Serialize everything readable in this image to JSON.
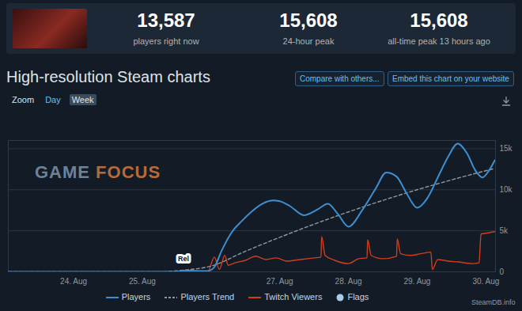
{
  "header": {
    "stats": [
      {
        "value": "13,587",
        "label": "players right now"
      },
      {
        "value": "15,608",
        "label": "24-hour peak"
      },
      {
        "value": "15,608",
        "label": "all-time peak 13 hours ago"
      }
    ]
  },
  "heading": "High-resolution Steam charts",
  "buttons": [
    "Compare with others...",
    "Embed this chart on your website"
  ],
  "zoom": {
    "label": "Zoom",
    "options": [
      "Day",
      "Week"
    ],
    "selected": "Week"
  },
  "watermark": [
    "GAME",
    "FOCUS"
  ],
  "credit": "SteamDB.info",
  "chart_data": {
    "type": "line",
    "xlim": [
      23.05,
      30.14
    ],
    "xticks": [
      {
        "value": 24,
        "label": "24. Aug"
      },
      {
        "value": 25,
        "label": "25. Aug"
      },
      {
        "value": 27,
        "label": "27. Aug"
      },
      {
        "value": 28,
        "label": "28. Aug"
      },
      {
        "value": 29,
        "label": "29. Aug"
      },
      {
        "value": 30,
        "label": "30. Aug"
      }
    ],
    "ylim": [
      0,
      16000
    ],
    "yticks": [
      0,
      {
        "value": 5000,
        "label": "5k"
      },
      {
        "value": 10000,
        "label": "10k"
      },
      {
        "value": 15000,
        "label": "15k"
      }
    ],
    "grid": true,
    "legend": "bottom",
    "series": [
      {
        "name": "Players",
        "color": "#3d8fd1",
        "line_style": "solid",
        "x": [
          23.05,
          25.0,
          25.5,
          25.6,
          25.75,
          25.95,
          26.05,
          26.15,
          26.3,
          26.45,
          26.6,
          26.75,
          26.9,
          27.0,
          27.15,
          27.35,
          27.55,
          27.7,
          27.85,
          28.0,
          28.2,
          28.4,
          28.55,
          28.7,
          28.85,
          29.0,
          29.15,
          29.3,
          29.45,
          29.59,
          29.72,
          29.85,
          29.95,
          30.05,
          30.13
        ],
        "values": [
          0,
          0,
          0,
          150,
          120,
          100,
          600,
          2500,
          4800,
          6200,
          7400,
          8300,
          8700,
          8600,
          8000,
          6900,
          7600,
          8300,
          7000,
          5500,
          7500,
          10200,
          12100,
          11600,
          9500,
          7800,
          9000,
          11500,
          14000,
          15608,
          14500,
          12300,
          11500,
          12400,
          13587
        ]
      },
      {
        "name": "Players Trend",
        "color": "#8f98a0",
        "line_style": "dashed",
        "x": [
          23.05,
          25.2,
          25.6,
          26.0,
          26.5,
          27.0,
          27.5,
          28.0,
          28.5,
          29.0,
          29.5,
          30.13
        ],
        "values": [
          0,
          0,
          200,
          700,
          2500,
          4200,
          5800,
          7300,
          8700,
          10000,
          11200,
          12600
        ]
      },
      {
        "name": "Twitch Viewers",
        "color": "#cf3f1e",
        "line_style": "solid",
        "x": [
          23.05,
          25.95,
          26.05,
          26.12,
          26.2,
          26.25,
          26.35,
          26.5,
          26.65,
          26.8,
          26.95,
          27.1,
          27.3,
          27.5,
          27.6,
          27.61,
          27.66,
          27.8,
          28.0,
          28.15,
          28.27,
          28.28,
          28.33,
          28.5,
          28.7,
          28.71,
          28.76,
          28.9,
          29.05,
          29.2,
          29.22,
          29.3,
          29.45,
          29.6,
          29.8,
          29.9,
          29.93,
          30.0,
          30.13
        ],
        "values": [
          0,
          0,
          1800,
          300,
          2000,
          800,
          1100,
          1400,
          1900,
          1500,
          1700,
          1300,
          1500,
          1700,
          1800,
          4300,
          2000,
          1400,
          1000,
          1600,
          1700,
          3900,
          2000,
          1600,
          1900,
          4000,
          2200,
          2000,
          2200,
          2400,
          300,
          1500,
          1300,
          1200,
          1000,
          1100,
          4600,
          4700,
          4900
        ]
      }
    ],
    "flags": {
      "name": "Flags",
      "color": "#a8cbe8",
      "x": [
        25.6
      ],
      "labels": [
        "Rel"
      ]
    }
  }
}
